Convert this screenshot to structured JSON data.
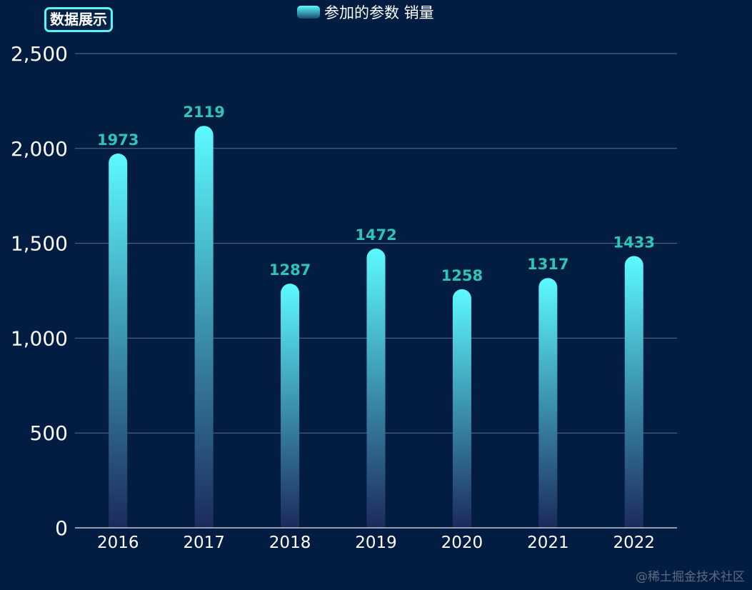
{
  "title": "数据展示",
  "legend": {
    "label": "参加的参数 销量"
  },
  "watermark": "@稀土掘金技术社区",
  "colors": {
    "background": "#031d42",
    "bar_top": "#5cfafe",
    "bar_bottom": "#1c2a5c",
    "data_label": "#2ec4b6",
    "grid": "#5a6e8c",
    "axis_text": "#ffffff"
  },
  "chart_data": {
    "type": "bar",
    "categories": [
      "2016",
      "2017",
      "2018",
      "2019",
      "2020",
      "2021",
      "2022"
    ],
    "series": [
      {
        "name": "参加的参数 销量",
        "values": [
          1973,
          2119,
          1287,
          1472,
          1258,
          1317,
          1433
        ]
      }
    ],
    "ylim": [
      0,
      2500
    ],
    "yticks": [
      0,
      500,
      1000,
      1500,
      2000,
      2500
    ],
    "ytick_labels": [
      "0",
      "500",
      "1,000",
      "1,500",
      "2,000",
      "2,500"
    ],
    "grid": true,
    "legend_position": "top-center",
    "data_labels": true
  }
}
